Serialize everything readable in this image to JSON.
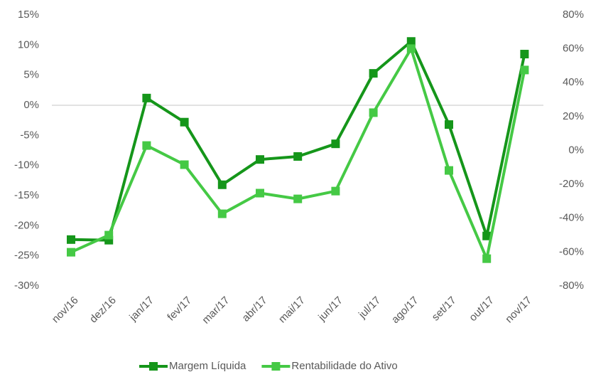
{
  "chart_data": {
    "type": "line",
    "categories": [
      "nov/16",
      "dez/16",
      "jan/17",
      "fev/17",
      "mar/17",
      "abr/17",
      "mai/17",
      "jun/17",
      "jul/17",
      "ago/17",
      "set/17",
      "out/17",
      "nov/17"
    ],
    "series": [
      {
        "name": "Margem Líquida",
        "color": "#15961a",
        "values": [
          -22.3,
          -22.4,
          1.2,
          -2.8,
          -13.2,
          -9.0,
          -8.5,
          -6.4,
          5.3,
          10.6,
          -3.2,
          -21.7,
          8.5
        ]
      },
      {
        "name": "Rentabilidade do Ativo",
        "color": "#45c945",
        "axis": "y2",
        "values": [
          -60.1,
          -50,
          2.9,
          -8.4,
          -37.4,
          -25.2,
          -28.6,
          -24,
          22.3,
          60.1,
          -11.8,
          -63.9,
          47.5
        ]
      }
    ],
    "ylim": [
      -30,
      15
    ],
    "yticks": [
      {
        "value": -30,
        "label": "-30%"
      },
      {
        "value": -25,
        "label": "-25%"
      },
      {
        "value": -20,
        "label": "-20%"
      },
      {
        "value": -15,
        "label": "-15%"
      },
      {
        "value": -10,
        "label": "-10%"
      },
      {
        "value": -5,
        "label": "-5%"
      },
      {
        "value": 0,
        "label": "0%"
      },
      {
        "value": 5,
        "label": "5%"
      },
      {
        "value": 10,
        "label": "10%"
      },
      {
        "value": 15,
        "label": "15%"
      }
    ],
    "y2lim": [
      -80,
      80
    ],
    "y2ticks": [
      {
        "value": -80,
        "label": "-80%"
      },
      {
        "value": -60,
        "label": "-60%"
      },
      {
        "value": -40,
        "label": "-40%"
      },
      {
        "value": -20,
        "label": "-20%"
      },
      {
        "value": 0,
        "label": "0%"
      },
      {
        "value": 20,
        "label": "20%"
      },
      {
        "value": 40,
        "label": "40%"
      },
      {
        "value": 60,
        "label": "60%"
      },
      {
        "value": 80,
        "label": "80%"
      }
    ],
    "legend": "bottom"
  }
}
